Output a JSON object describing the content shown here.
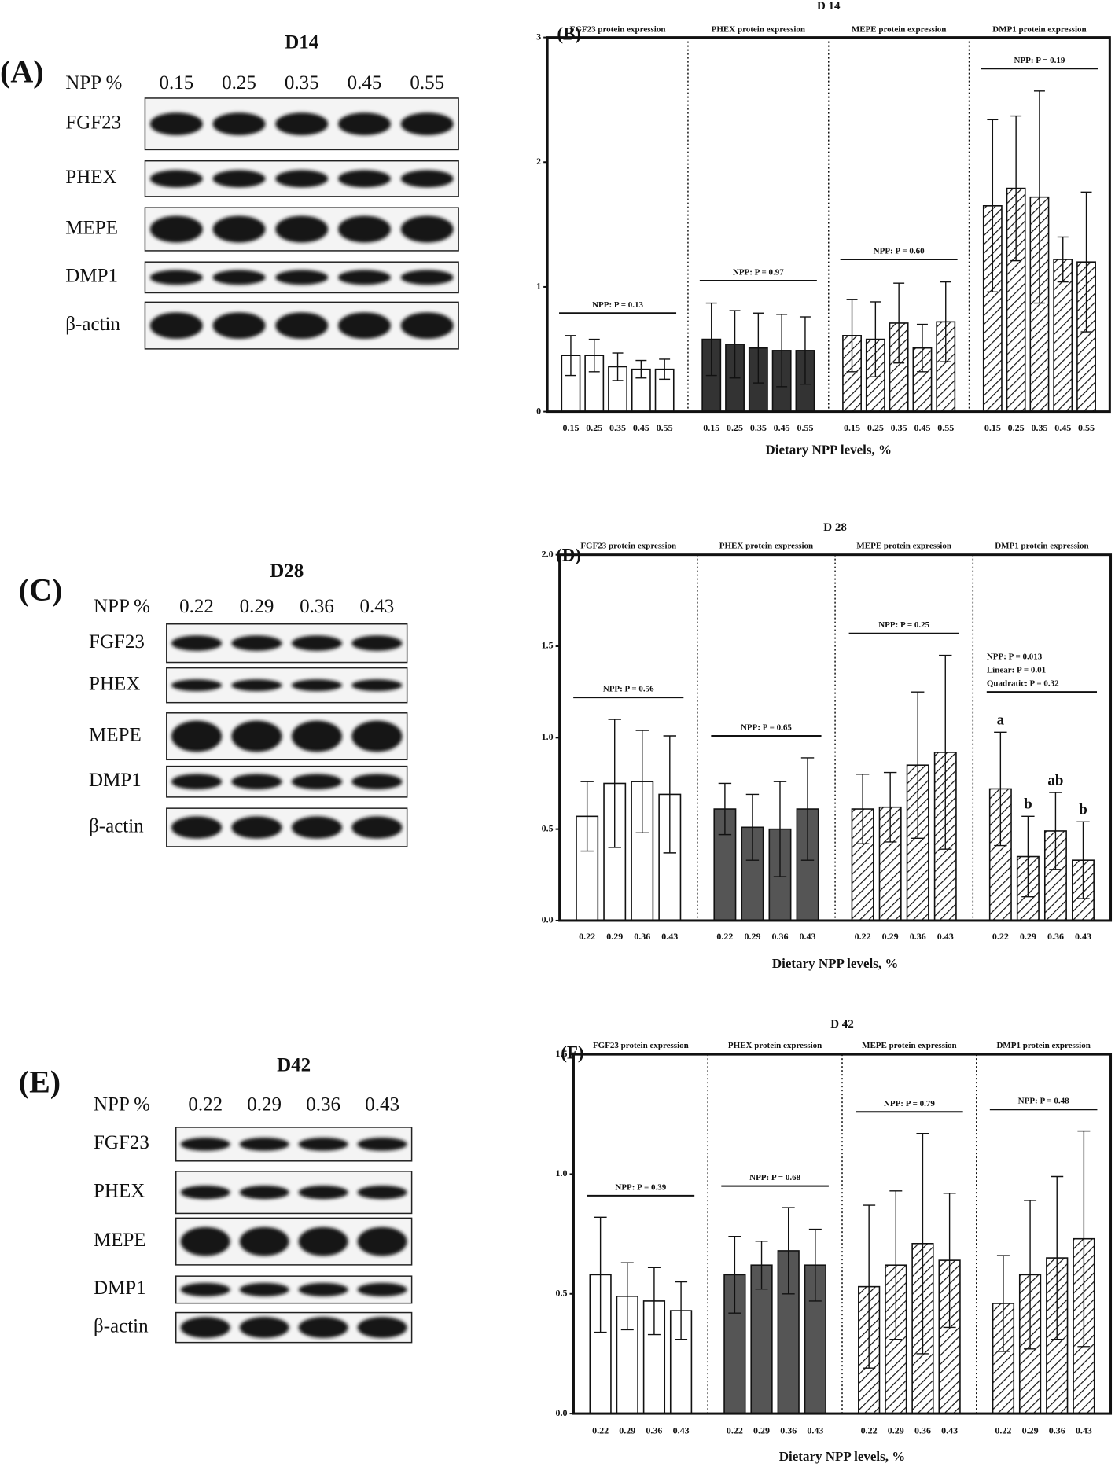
{
  "blots": [
    {
      "panel": "(A)",
      "title": "D14",
      "npp_label": "NPP %",
      "levels": [
        "0.15",
        "0.25",
        "0.35",
        "0.45",
        "0.55"
      ],
      "proteins": [
        "FGF23",
        "PHEX",
        "MEPE",
        "DMP1",
        "β-actin"
      ]
    },
    {
      "panel": "(C)",
      "title": "D28",
      "npp_label": "NPP %",
      "levels": [
        "0.22",
        "0.29",
        "0.36",
        "0.43"
      ],
      "proteins": [
        "FGF23",
        "PHEX",
        "MEPE",
        "DMP1",
        "β-actin"
      ]
    },
    {
      "panel": "(E)",
      "title": "D42",
      "npp_label": "NPP %",
      "levels": [
        "0.22",
        "0.29",
        "0.36",
        "0.43"
      ],
      "proteins": [
        "FGF23",
        "PHEX",
        "MEPE",
        "DMP1",
        "β-actin"
      ]
    }
  ],
  "chart_data": [
    {
      "type": "bar",
      "panel": "(B)",
      "title": "D 14",
      "xlabel": "Dietary NPP levels, %",
      "categories": [
        "0.15",
        "0.25",
        "0.35",
        "0.45",
        "0.55"
      ],
      "ylim": [
        0,
        3
      ],
      "yticks": [
        0,
        1,
        2,
        3
      ],
      "series": [
        {
          "name": "FGF23 protein expression",
          "color": "#ffffff",
          "hatch": false,
          "values": [
            0.45,
            0.45,
            0.36,
            0.34,
            0.34
          ],
          "errors": [
            0.16,
            0.13,
            0.11,
            0.07,
            0.08
          ],
          "p_label": [
            "NPP: P = 0.13"
          ]
        },
        {
          "name": "PHEX protein expression",
          "color": "#333333",
          "hatch": false,
          "values": [
            0.58,
            0.54,
            0.51,
            0.49,
            0.49
          ],
          "errors": [
            0.29,
            0.27,
            0.28,
            0.29,
            0.27
          ],
          "p_label": [
            "NPP: P = 0.97"
          ]
        },
        {
          "name": "MEPE protein expression",
          "color": "#ffffff",
          "hatch": true,
          "values": [
            0.61,
            0.58,
            0.71,
            0.51,
            0.72
          ],
          "errors": [
            0.29,
            0.3,
            0.32,
            0.19,
            0.32
          ],
          "p_label": [
            "NPP: P = 0.60"
          ]
        },
        {
          "name": "DMP1 protein expression",
          "color": "#ffffff",
          "hatch": true,
          "values": [
            1.65,
            1.79,
            1.72,
            1.22,
            1.2
          ],
          "errors": [
            0.69,
            0.58,
            0.85,
            0.18,
            0.56
          ],
          "p_label": [
            "NPP: P = 0.19"
          ]
        }
      ]
    },
    {
      "type": "bar",
      "panel": "(D)",
      "title": "D 28",
      "xlabel": "Dietary NPP levels, %",
      "categories": [
        "0.22",
        "0.29",
        "0.36",
        "0.43"
      ],
      "ylim": [
        0,
        2
      ],
      "yticks": [
        {
          "value": 0,
          "label": "0.0"
        },
        0.5,
        {
          "value": 1,
          "label": "1.0"
        },
        1.5,
        {
          "value": 2,
          "label": "2.0"
        }
      ],
      "series": [
        {
          "name": "FGF23 protein expression",
          "color": "#ffffff",
          "hatch": false,
          "values": [
            0.57,
            0.75,
            0.76,
            0.69
          ],
          "errors": [
            0.19,
            0.35,
            0.28,
            0.32
          ],
          "p_label": [
            "NPP: P = 0.56"
          ]
        },
        {
          "name": "PHEX protein expression",
          "color": "#555555",
          "hatch": false,
          "values": [
            0.61,
            0.51,
            0.5,
            0.61
          ],
          "errors": [
            0.14,
            0.18,
            0.26,
            0.28
          ],
          "p_label": [
            "NPP: P = 0.65"
          ]
        },
        {
          "name": "MEPE protein expression",
          "color": "#ffffff",
          "hatch": true,
          "values": [
            0.61,
            0.62,
            0.85,
            0.92
          ],
          "errors": [
            0.19,
            0.19,
            0.4,
            0.53
          ],
          "p_label": [
            "NPP: P = 0.25"
          ]
        },
        {
          "name": "DMP1 protein expression",
          "color": "#ffffff",
          "hatch": true,
          "values": [
            0.72,
            0.35,
            0.49,
            0.33
          ],
          "errors": [
            0.31,
            0.22,
            0.21,
            0.21
          ],
          "p_label": [
            "NPP: P = 0.013",
            "Linear: P = 0.01",
            "Quadratic: P = 0.32"
          ],
          "letters": [
            "a",
            "b",
            "ab",
            "b"
          ]
        }
      ]
    },
    {
      "type": "bar",
      "panel": "(F)",
      "title": "D 42",
      "xlabel": "Dietary NPP levels, %",
      "categories": [
        "0.22",
        "0.29",
        "0.36",
        "0.43"
      ],
      "ylim": [
        0,
        1.5
      ],
      "yticks": [
        {
          "value": 0,
          "label": "0.0"
        },
        0.5,
        {
          "value": 1,
          "label": "1.0"
        },
        1.5
      ],
      "series": [
        {
          "name": "FGF23 protein expression",
          "color": "#ffffff",
          "hatch": false,
          "values": [
            0.58,
            0.49,
            0.47,
            0.43
          ],
          "errors": [
            0.24,
            0.14,
            0.14,
            0.12
          ],
          "p_label": [
            "NPP: P = 0.39"
          ]
        },
        {
          "name": "PHEX protein expression",
          "color": "#555555",
          "hatch": false,
          "values": [
            0.58,
            0.62,
            0.68,
            0.62
          ],
          "errors": [
            0.16,
            0.1,
            0.18,
            0.15
          ],
          "p_label": [
            "NPP: P = 0.68"
          ]
        },
        {
          "name": "MEPE protein expression",
          "color": "#ffffff",
          "hatch": true,
          "values": [
            0.53,
            0.62,
            0.71,
            0.64
          ],
          "errors": [
            0.34,
            0.31,
            0.46,
            0.28
          ],
          "p_label": [
            "NPP: P = 0.79"
          ]
        },
        {
          "name": "DMP1 protein expression",
          "color": "#ffffff",
          "hatch": true,
          "values": [
            0.46,
            0.58,
            0.65,
            0.73
          ],
          "errors": [
            0.2,
            0.31,
            0.34,
            0.45
          ],
          "p_label": [
            "NPP: P = 0.48"
          ]
        }
      ]
    }
  ]
}
